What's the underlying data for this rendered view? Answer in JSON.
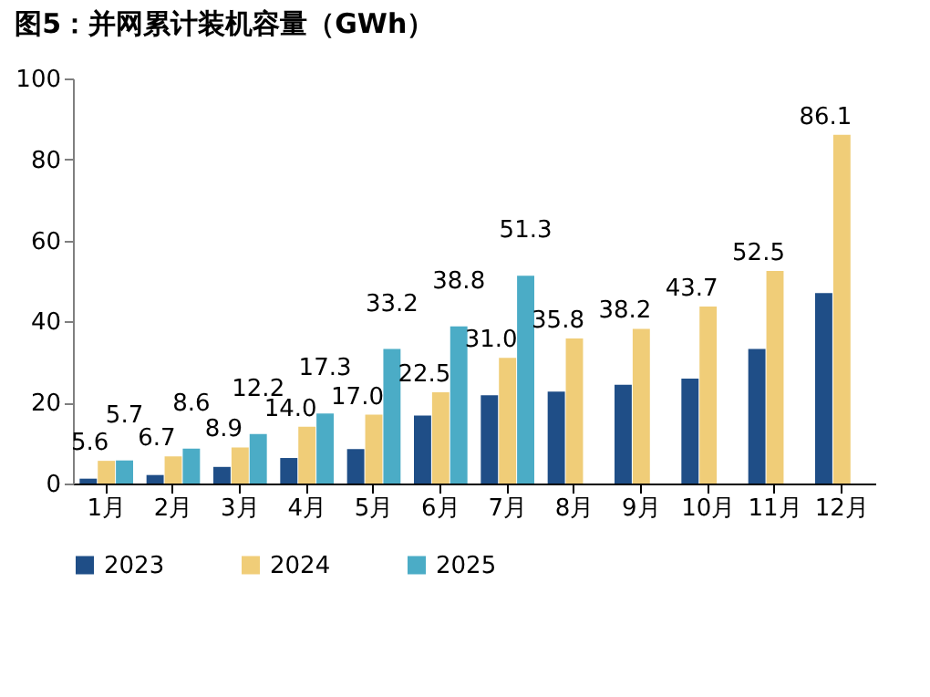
{
  "chart_data": {
    "type": "bar",
    "title": "图5：并网累计装机容量（GWh）",
    "categories": [
      "1月",
      "2月",
      "3月",
      "4月",
      "5月",
      "6月",
      "7月",
      "8月",
      "9月",
      "10月",
      "11月",
      "12月"
    ],
    "series": [
      {
        "name": "2023",
        "color": "#1f4e87",
        "values": [
          1.2,
          2.1,
          4.1,
          6.3,
          8.5,
          16.8,
          21.8,
          22.7,
          24.4,
          25.9,
          33.2,
          47.0
        ]
      },
      {
        "name": "2024",
        "color": "#f0cd78",
        "values": [
          5.6,
          6.7,
          8.9,
          14.0,
          17.0,
          22.5,
          31.0,
          35.8,
          38.2,
          43.7,
          52.5,
          86.1
        ],
        "value_labels": [
          "5.6",
          "6.7",
          "8.9",
          "14.0",
          "17.0",
          "22.5",
          "31.0",
          "35.8",
          "38.2",
          "43.7",
          "52.5",
          "86.1"
        ]
      },
      {
        "name": "2025",
        "color": "#4bacc6",
        "values": [
          5.7,
          8.6,
          12.2,
          17.3,
          33.2,
          38.8,
          51.3,
          null,
          null,
          null,
          null,
          null
        ],
        "value_labels": [
          "5.7",
          "8.6",
          "12.2",
          "17.3",
          "33.2",
          "38.8",
          "51.3",
          null,
          null,
          null,
          null,
          null
        ]
      }
    ],
    "ylim": [
      0,
      100
    ],
    "yticks": [
      0,
      20,
      40,
      60,
      80,
      100
    ],
    "grid": false,
    "legend": "bottom"
  }
}
